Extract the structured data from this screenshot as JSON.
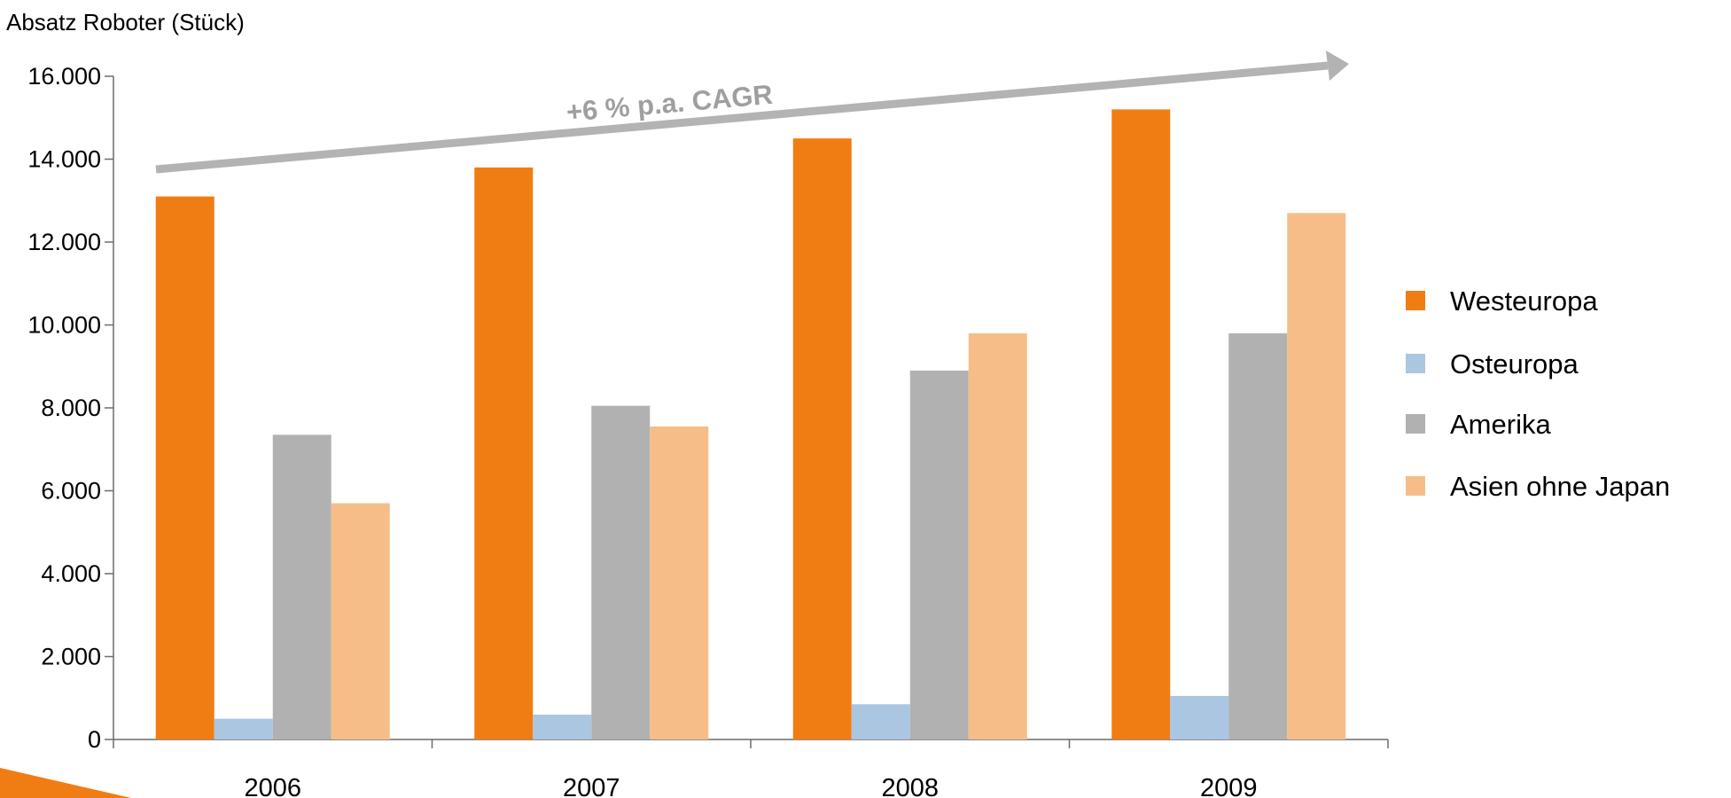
{
  "chart_data": {
    "type": "bar",
    "ylabel": "Absatz Roboter (Stück)",
    "xlabel": "",
    "categories": [
      "2006",
      "2007",
      "2008",
      "2009"
    ],
    "series": [
      {
        "name": "Westeuropa",
        "color": "#f07d13",
        "values": [
          13100,
          13800,
          14500,
          15200
        ]
      },
      {
        "name": "Osteuropa",
        "color": "#abc6e1",
        "values": [
          500,
          600,
          850,
          1050
        ]
      },
      {
        "name": "Amerika",
        "color": "#b1b1b1",
        "values": [
          7350,
          8050,
          8900,
          9800
        ]
      },
      {
        "name": "Asien ohne Japan",
        "color": "#f6bd88",
        "values": [
          5700,
          7550,
          9800,
          12700
        ]
      }
    ],
    "ylim": [
      0,
      16000
    ],
    "yticks": [
      0,
      2000,
      4000,
      6000,
      8000,
      10000,
      12000,
      14000,
      16000
    ],
    "ytick_labels": [
      "0",
      "2.000",
      "4.000",
      "6.000",
      "8.000",
      "10.000",
      "12.000",
      "14.000",
      "16.000"
    ],
    "legend_position": "right",
    "grid": false,
    "annotation": {
      "text": "+6 % p.a. CAGR",
      "arrow_color": "#b3b3b3"
    }
  }
}
